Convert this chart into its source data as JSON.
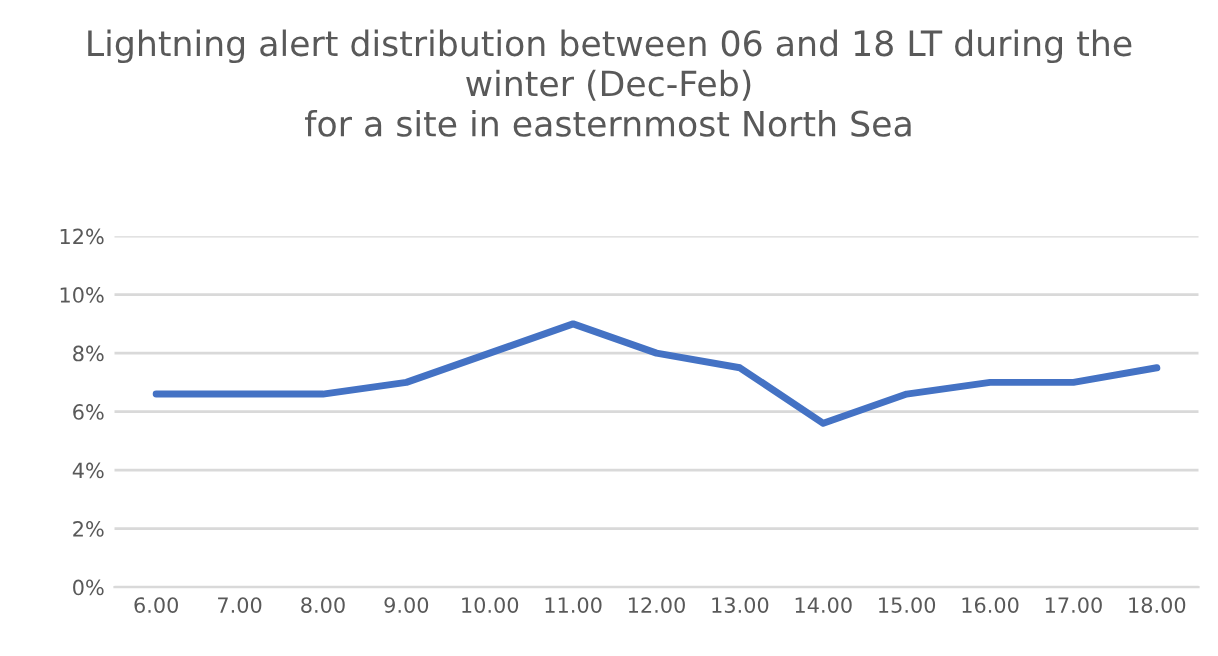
{
  "chart_data": {
    "type": "line",
    "title": "Lightning alert distribution between 06 and 18 LT during the\nwinter (Dec-Feb)\nfor a site in easternmost North Sea",
    "categories": [
      "6.00",
      "7.00",
      "8.00",
      "9.00",
      "10.00",
      "11.00",
      "12.00",
      "13.00",
      "14.00",
      "15.00",
      "16.00",
      "17.00",
      "18.00"
    ],
    "series": [
      {
        "color": "#4472c4",
        "values": [
          6.6,
          6.6,
          6.6,
          7.0,
          8.0,
          9.0,
          8.0,
          7.5,
          5.6,
          6.6,
          7.0,
          7.0,
          7.5
        ]
      }
    ],
    "ylim": [
      0,
      12
    ],
    "yticks": [
      {
        "value": 0,
        "label": "0%"
      },
      {
        "value": 2,
        "label": "2%"
      },
      {
        "value": 4,
        "label": "4%"
      },
      {
        "value": 6,
        "label": "6%"
      },
      {
        "value": 8,
        "label": "8%"
      },
      {
        "value": 10,
        "label": "10%"
      },
      {
        "value": 12,
        "label": "12%"
      }
    ],
    "grid": "y",
    "legend": false,
    "marker": "none",
    "line_style": "solid"
  }
}
